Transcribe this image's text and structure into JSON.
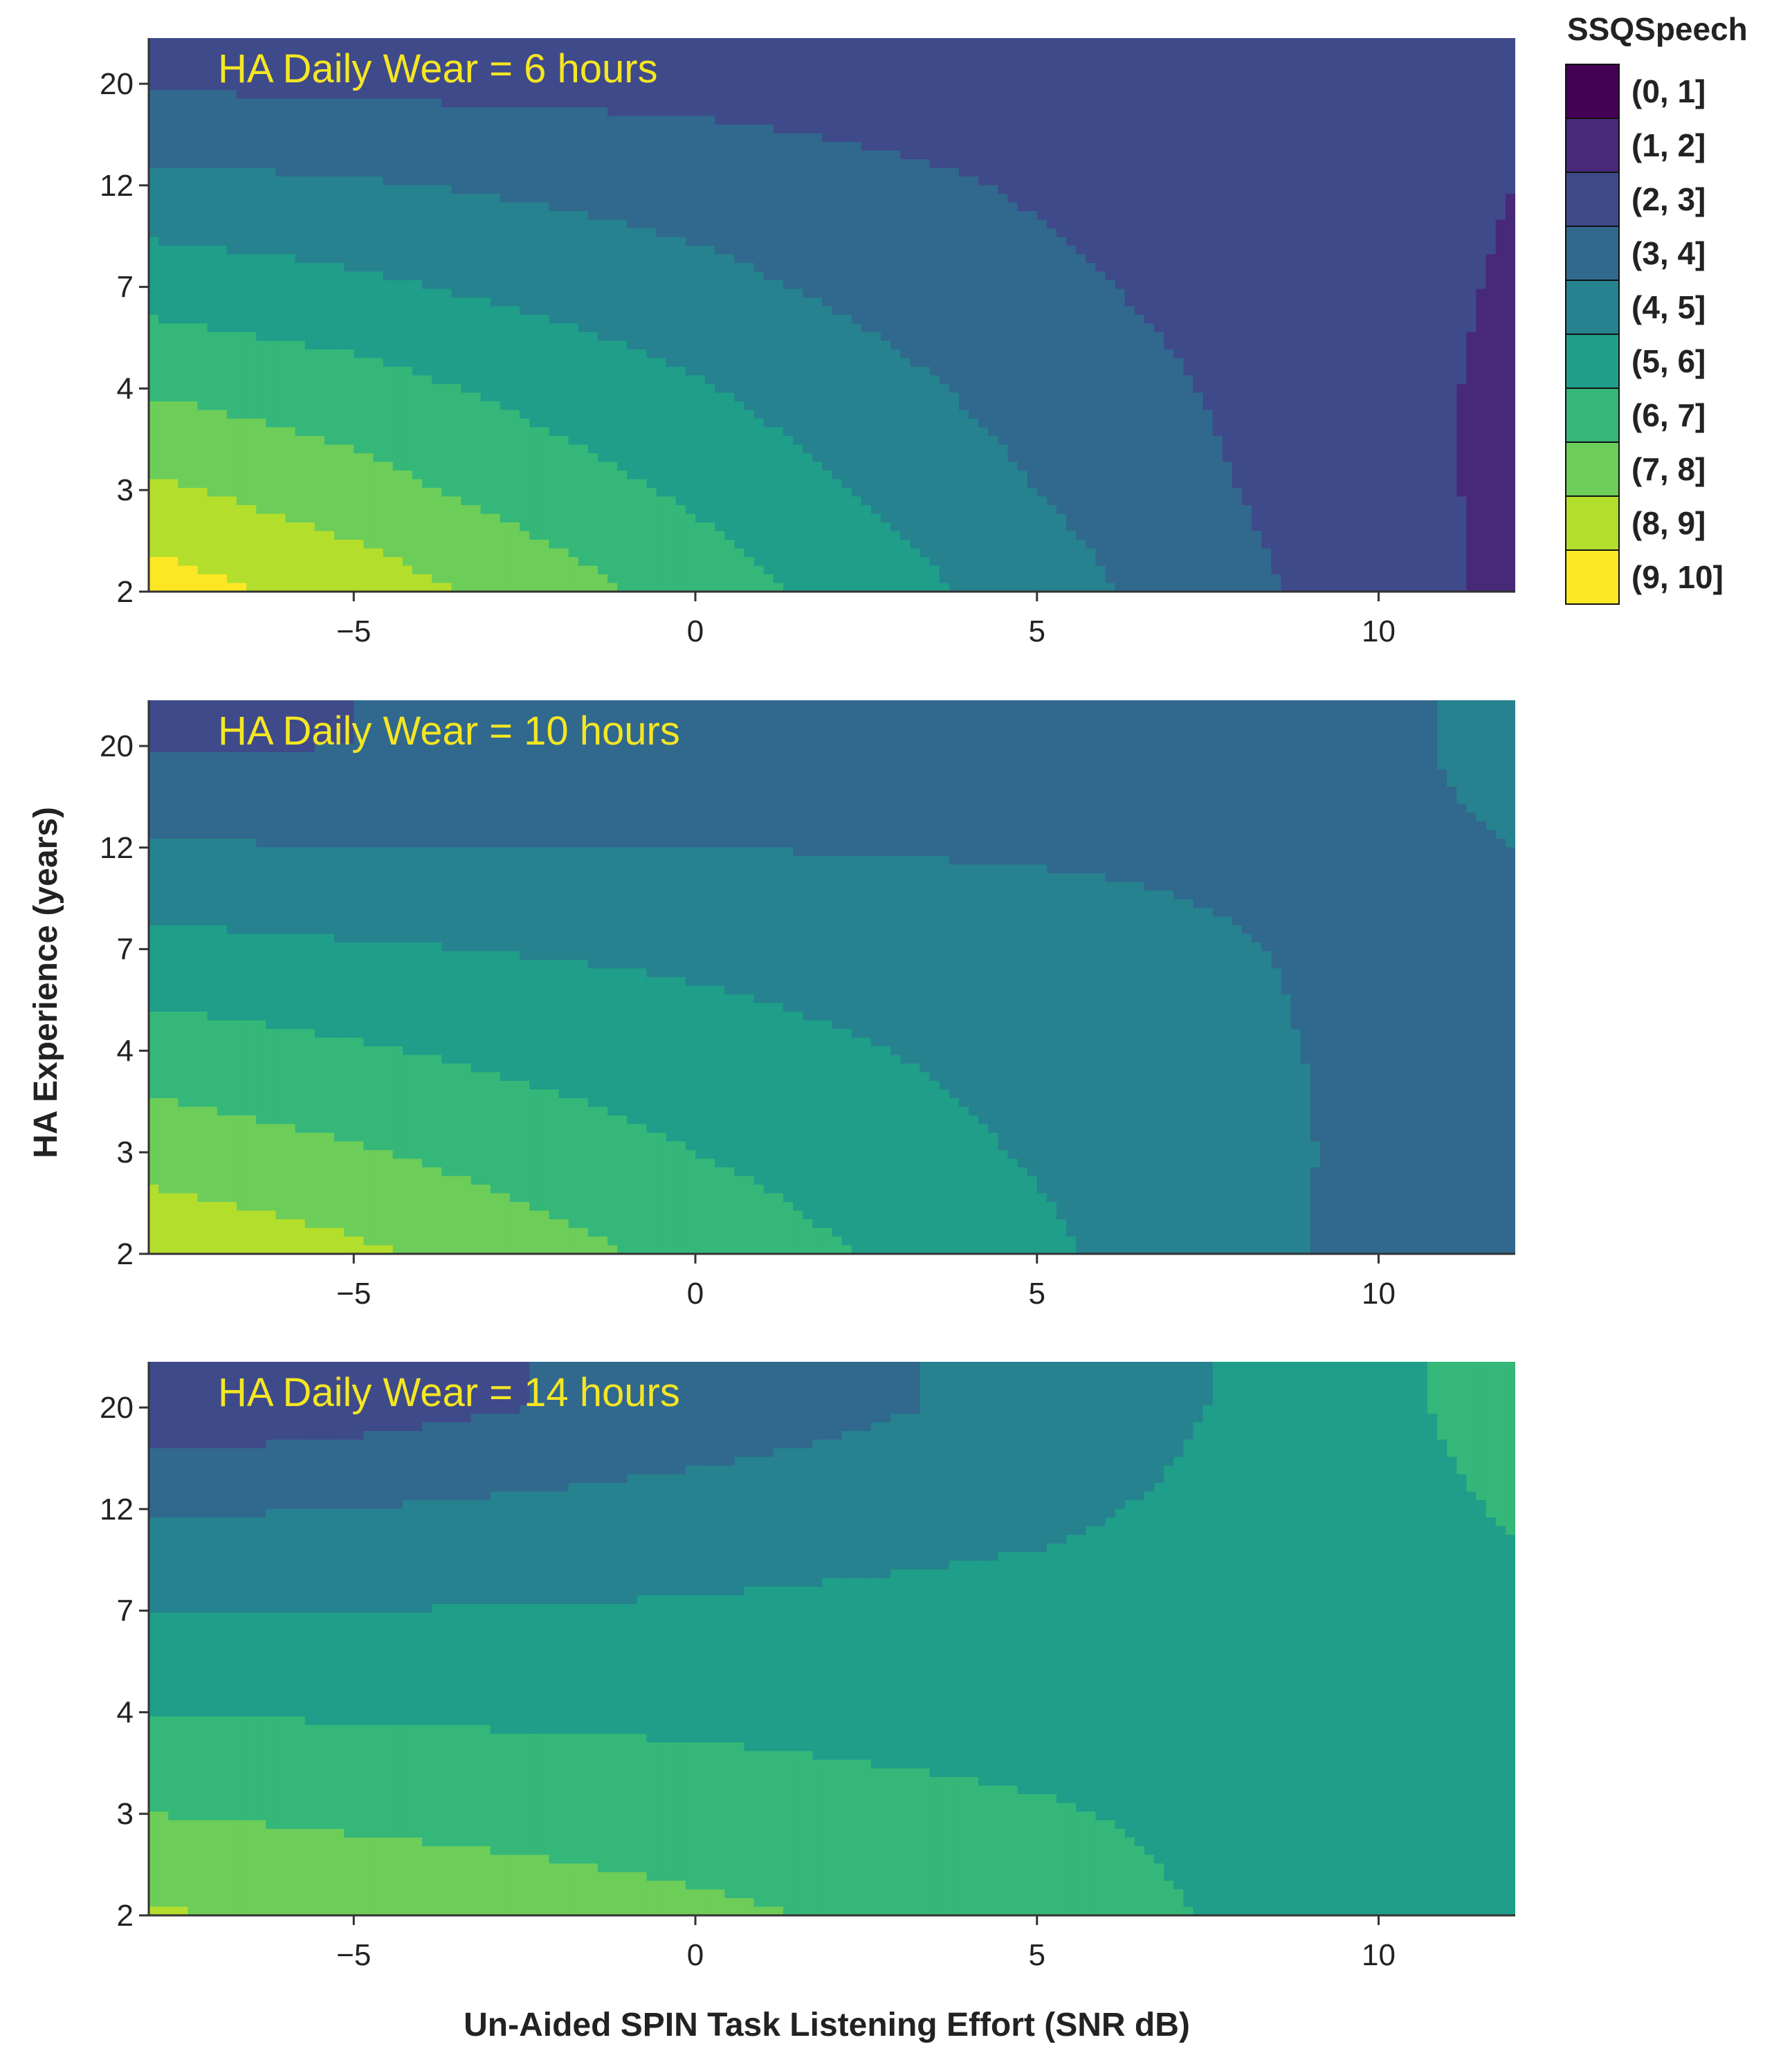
{
  "chart_data": {
    "type": "heatmap",
    "subtype": "filled-contour",
    "xlabel": "Un-Aided SPIN Task Listening Effort (SNR dB)",
    "ylabel": "HA Experience (years)",
    "xlim": [
      -8,
      12
    ],
    "x_ticks": [
      {
        "value": -5,
        "label": "−5"
      },
      {
        "value": 0,
        "label": "0"
      },
      {
        "value": 5,
        "label": "5"
      },
      {
        "value": 10,
        "label": "10"
      }
    ],
    "y_ticks": [
      "2",
      "3",
      "4",
      "7",
      "12",
      "20"
    ],
    "y_scale": "categorical-ordered (approximately logarithmic)",
    "grid": false,
    "legend": {
      "title": "SSQSpeech",
      "placement": "right",
      "bins": [
        {
          "label": "(0, 1]",
          "color": "#440154"
        },
        {
          "label": "(1, 2]",
          "color": "#482878"
        },
        {
          "label": "(2, 3]",
          "color": "#3E4A89"
        },
        {
          "label": "(3, 4]",
          "color": "#31688E"
        },
        {
          "label": "(4, 5]",
          "color": "#26828E"
        },
        {
          "label": "(5, 6]",
          "color": "#1F9E89"
        },
        {
          "label": "(6, 7]",
          "color": "#35B779"
        },
        {
          "label": "(7, 8]",
          "color": "#6DCD59"
        },
        {
          "label": "(8, 9]",
          "color": "#B4DE2C"
        },
        {
          "label": "(9, 10]",
          "color": "#FDE725"
        }
      ]
    },
    "title_color": "#F5E623",
    "panels": [
      {
        "title": "HA Daily Wear = 6 hours",
        "approx_value_grid": {
          "x": [
            -8,
            -5,
            0,
            5,
            10,
            12
          ],
          "y": [
            "2",
            "3",
            "4",
            "7",
            "12",
            "20"
          ],
          "z": [
            [
              9.5,
              8.6,
              6.6,
              4.5,
              2.4,
              1.8
            ],
            [
              8.2,
              7.4,
              5.8,
              4.0,
              2.3,
              1.8
            ],
            [
              6.9,
              6.4,
              5.1,
              3.6,
              2.3,
              1.8
            ],
            [
              5.6,
              5.2,
              4.3,
              3.2,
              2.3,
              1.9
            ],
            [
              4.3,
              4.1,
              3.6,
              2.9,
              2.3,
              2.0
            ],
            [
              2.9,
              2.8,
              2.7,
              2.5,
              2.4,
              2.3
            ]
          ]
        }
      },
      {
        "title": "HA Daily Wear = 10 hours",
        "approx_value_grid": {
          "x": [
            -8,
            -5,
            0,
            5,
            10,
            12
          ],
          "y": [
            "2",
            "3",
            "4",
            "7",
            "12",
            "20"
          ],
          "z": [
            [
              8.8,
              8.2,
              6.7,
              5.2,
              3.7,
              3.6
            ],
            [
              7.6,
              7.1,
              6.0,
              4.9,
              3.8,
              3.7
            ],
            [
              6.5,
              6.1,
              5.4,
              4.7,
              3.8,
              3.8
            ],
            [
              5.3,
              5.1,
              4.8,
              4.4,
              3.8,
              3.8
            ],
            [
              4.1,
              4.0,
              4.0,
              3.9,
              3.8,
              4.0
            ],
            [
              2.9,
              3.0,
              3.2,
              3.4,
              3.8,
              4.3
            ]
          ]
        }
      },
      {
        "title": "HA Daily Wear = 14 hours",
        "approx_value_grid": {
          "x": [
            -8,
            -5,
            0,
            5,
            10,
            12
          ],
          "y": [
            "2",
            "3",
            "4",
            "7",
            "12",
            "20"
          ],
          "z": [
            [
              8.1,
              7.8,
              7.2,
              6.5,
              5.4,
              5.3
            ],
            [
              7.0,
              6.8,
              6.5,
              6.1,
              5.5,
              5.5
            ],
            [
              6.0,
              5.9,
              5.8,
              5.6,
              5.5,
              5.6
            ],
            [
              5.0,
              5.0,
              5.1,
              5.3,
              5.6,
              5.8
            ],
            [
              3.9,
              4.0,
              4.4,
              4.8,
              5.6,
              6.1
            ],
            [
              2.3,
              2.6,
              3.4,
              4.3,
              5.7,
              6.5
            ]
          ]
        }
      }
    ]
  }
}
